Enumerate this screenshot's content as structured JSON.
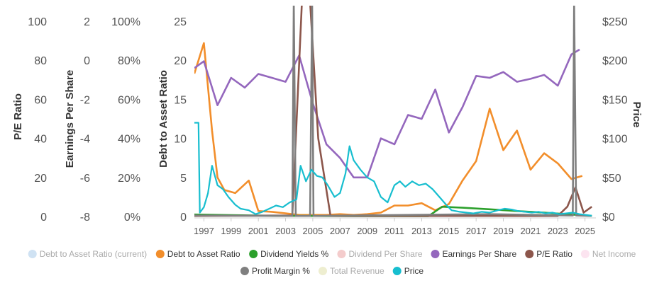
{
  "chart_data": {
    "type": "line",
    "title": "",
    "xlabel": "",
    "x_ticks": [
      "1997",
      "1999",
      "2001",
      "2003",
      "2005",
      "2007",
      "2009",
      "2011",
      "2013",
      "2015",
      "2017",
      "2019",
      "2021",
      "2023",
      "2025"
    ],
    "xlim": [
      1996.3,
      2025.8
    ],
    "axes": {
      "pe": {
        "label": "P/E Ratio",
        "ticks": [
          "100",
          "80",
          "60",
          "40",
          "20",
          "0"
        ],
        "range": [
          0,
          100
        ]
      },
      "eps": {
        "label": "Earnings Per Share",
        "ticks": [
          "2",
          "0",
          "-2",
          "-4",
          "-6",
          "-8"
        ],
        "range": [
          -8,
          2
        ]
      },
      "pct": {
        "label": "",
        "ticks": [
          "100%",
          "80%",
          "60%",
          "40%",
          "20%",
          "0%"
        ],
        "range": [
          0,
          100
        ]
      },
      "de": {
        "label": "Debt to Asset Ratio",
        "ticks": [
          "25",
          "20",
          "15",
          "10",
          "5",
          "0"
        ],
        "range": [
          0,
          25
        ]
      },
      "price": {
        "label": "Price",
        "ticks": [
          "$250",
          "$200",
          "$150",
          "$100",
          "$50",
          "$0"
        ],
        "range": [
          0,
          250
        ]
      }
    },
    "legend": [
      {
        "name": "Debt to Asset Ratio (current)",
        "color": "#cfe2f3",
        "active": false
      },
      {
        "name": "Debt to Asset Ratio",
        "color": "#f28e2b",
        "active": true
      },
      {
        "name": "Dividend Yields %",
        "color": "#2ca02c",
        "active": true
      },
      {
        "name": "Dividend Per Share",
        "color": "#f4cccc",
        "active": false
      },
      {
        "name": "Earnings Per Share",
        "color": "#9467bd",
        "active": true
      },
      {
        "name": "P/E Ratio",
        "color": "#8c564b",
        "active": true
      },
      {
        "name": "Net Income",
        "color": "#fce4f0",
        "active": false
      },
      {
        "name": "Profit Margin %",
        "color": "#7f7f7f",
        "active": true
      },
      {
        "name": "Total Revenue",
        "color": "#eeeed0",
        "active": false
      },
      {
        "name": "Price",
        "color": "#17becf",
        "active": true
      }
    ],
    "series": [
      {
        "name": "Debt to Asset Ratio",
        "axis": "de",
        "color": "#f28e2b",
        "x": [
          1996.3,
          1997.0,
          1997.6,
          1998.0,
          1998.5,
          1999.3,
          2000.3,
          2001.0,
          2002.0,
          2003.0,
          2004.0,
          2005.0,
          2006.0,
          2007.0,
          2008.0,
          2009.0,
          2010.0,
          2011.0,
          2012.0,
          2013.0,
          2014.0,
          2015.0,
          2016.0,
          2017.0,
          2018.0,
          2019.0,
          2020.0,
          2021.0,
          2022.0,
          2023.0,
          2024.0,
          2024.8
        ],
        "y": [
          18.3,
          22.2,
          11.0,
          5.0,
          3.4,
          3.0,
          4.6,
          0.7,
          0.6,
          0.4,
          0.2,
          0.2,
          0.2,
          0.3,
          0.2,
          0.3,
          0.5,
          1.4,
          1.4,
          1.7,
          0.8,
          1.6,
          4.6,
          7.1,
          13.8,
          8.5,
          11.0,
          6.0,
          8.1,
          6.8,
          4.8,
          5.2
        ]
      },
      {
        "name": "Earnings Per Share",
        "axis": "eps",
        "color": "#9467bd",
        "x": [
          1996.3,
          1997.0,
          1998.0,
          1999.0,
          2000.0,
          2001.0,
          2002.0,
          2003.0,
          2004.0,
          2005.0,
          2006.0,
          2007.0,
          2008.0,
          2009.0,
          2010.0,
          2011.0,
          2012.0,
          2013.0,
          2014.0,
          2015.0,
          2016.0,
          2017.0,
          2018.0,
          2019.0,
          2020.0,
          2021.0,
          2022.0,
          2023.0,
          2024.0,
          2024.6
        ],
        "y": [
          -0.4,
          -0.05,
          -2.3,
          -0.9,
          -1.4,
          -0.7,
          -0.9,
          -1.1,
          0.25,
          -2.2,
          -4.3,
          -5.0,
          -6.0,
          -6.0,
          -4.0,
          -4.3,
          -2.8,
          -3.0,
          -1.5,
          -3.7,
          -2.4,
          -0.8,
          -0.9,
          -0.6,
          -1.1,
          -0.95,
          -0.75,
          -1.3,
          0.3,
          0.55
        ]
      },
      {
        "name": "Dividend Yields %",
        "axis": "pct",
        "color": "#2ca02c",
        "x": [
          1996.3,
          1999.0,
          2002.0,
          2005.0,
          2008.0,
          2011.0,
          2013.5,
          2014.5,
          2016.0,
          2018.0,
          2020.0,
          2022.0,
          2024.0,
          2025.5
        ],
        "y": [
          1.0,
          0.7,
          0.4,
          0.3,
          0.2,
          0.2,
          0.2,
          5.0,
          4.5,
          3.7,
          2.8,
          2.0,
          1.0,
          0.3
        ]
      },
      {
        "name": "P/E Ratio",
        "axis": "pe",
        "color": "#8c564b",
        "x": [
          1996.3,
          2003.5,
          2004.2,
          2004.8,
          2005.4,
          2006.3,
          2006.8,
          2023.0,
          2023.7,
          2024.3,
          2024.9,
          2025.5
        ],
        "y": [
          0.3,
          0.5,
          110,
          110,
          40,
          0.3,
          0.3,
          0.3,
          5,
          15,
          2,
          5
        ]
      },
      {
        "name": "Profit Margin %",
        "axis": "pct",
        "color": "#7f7f7f",
        "x": [
          1996.3,
          2003.2,
          2003.5,
          2003.6,
          2003.75,
          2004.8,
          2004.95,
          2005.05,
          2005.2,
          2006.0,
          2018.0,
          2023.8,
          2024.1,
          2024.2,
          2024.35,
          2025.5
        ],
        "y": [
          0.5,
          0.3,
          0.3,
          110,
          0.3,
          0.3,
          110,
          0.3,
          0.3,
          0.4,
          1.2,
          0.5,
          0.5,
          110,
          0.5,
          0.3
        ]
      },
      {
        "name": "Price",
        "axis": "price",
        "color": "#17becf",
        "x": [
          1996.3,
          1996.6,
          1996.7,
          1997.0,
          1997.3,
          1997.6,
          1998.0,
          1998.4,
          1998.8,
          1999.3,
          1999.7,
          2000.3,
          2000.8,
          2001.3,
          2001.8,
          2002.3,
          2002.8,
          2003.3,
          2003.8,
          2004.1,
          2004.5,
          2004.9,
          2005.3,
          2005.7,
          2006.1,
          2006.6,
          2007.0,
          2007.4,
          2007.7,
          2008.0,
          2008.5,
          2009.0,
          2009.5,
          2010.0,
          2010.5,
          2011.0,
          2011.4,
          2011.8,
          2012.3,
          2012.8,
          2013.3,
          2013.8,
          2014.3,
          2014.8,
          2015.2,
          2015.8,
          2016.3,
          2016.8,
          2017.4,
          2018.0,
          2018.6,
          2019.1,
          2019.6,
          2020.1,
          2020.6,
          2021.1,
          2021.6,
          2022.1,
          2022.6,
          2023.1,
          2023.6,
          2024.1,
          2024.6,
          2025.1,
          2025.5
        ],
        "y": [
          120,
          120,
          5,
          12,
          30,
          65,
          40,
          35,
          25,
          15,
          10,
          8,
          3,
          6,
          10,
          14,
          12,
          18,
          22,
          65,
          45,
          60,
          52,
          50,
          40,
          25,
          30,
          55,
          90,
          72,
          60,
          50,
          45,
          25,
          18,
          40,
          45,
          38,
          45,
          40,
          42,
          35,
          25,
          15,
          8,
          6,
          5,
          4,
          6,
          5,
          8,
          10,
          9,
          7,
          6,
          5,
          6,
          4,
          5,
          3,
          4,
          5,
          3,
          2,
          1
        ]
      }
    ]
  }
}
